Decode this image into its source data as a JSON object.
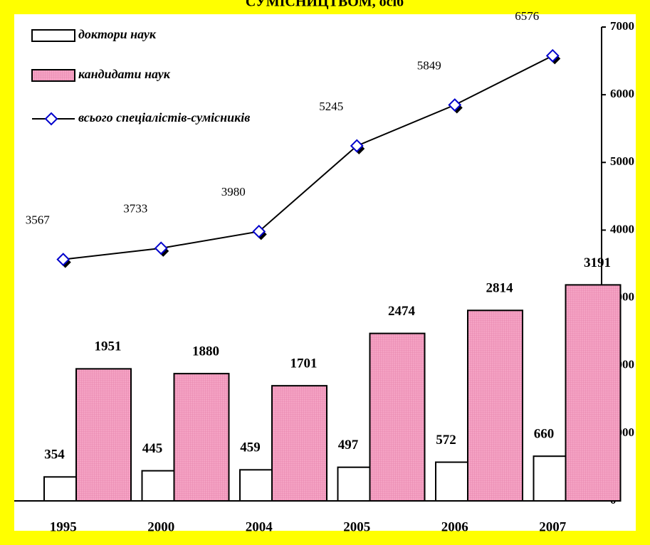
{
  "chart_data": {
    "type": "bar",
    "title": "СУМІСНИЦТВОМ, осіб",
    "categories": [
      "1995",
      "2000",
      "2004",
      "2005",
      "2006",
      "2007"
    ],
    "series": [
      {
        "name": "доктори наук",
        "color": "#ffffff",
        "values": [
          354,
          445,
          459,
          497,
          572,
          660
        ]
      },
      {
        "name": "кандидати наук",
        "color": "#f5a3c4",
        "values": [
          1951,
          1880,
          1701,
          2474,
          2814,
          3191
        ]
      },
      {
        "name": "всього спеціалістів-сумісників",
        "type": "line",
        "color": "#000000",
        "marker_color": "#0000cc",
        "values": [
          3567,
          3733,
          3980,
          5245,
          5849,
          6576
        ]
      }
    ],
    "ylim": [
      0,
      7000
    ],
    "yticks": [
      0,
      1000,
      2000,
      3000,
      4000,
      5000,
      6000,
      7000
    ],
    "legend": "top-left",
    "frame_color": "#ffff00"
  }
}
